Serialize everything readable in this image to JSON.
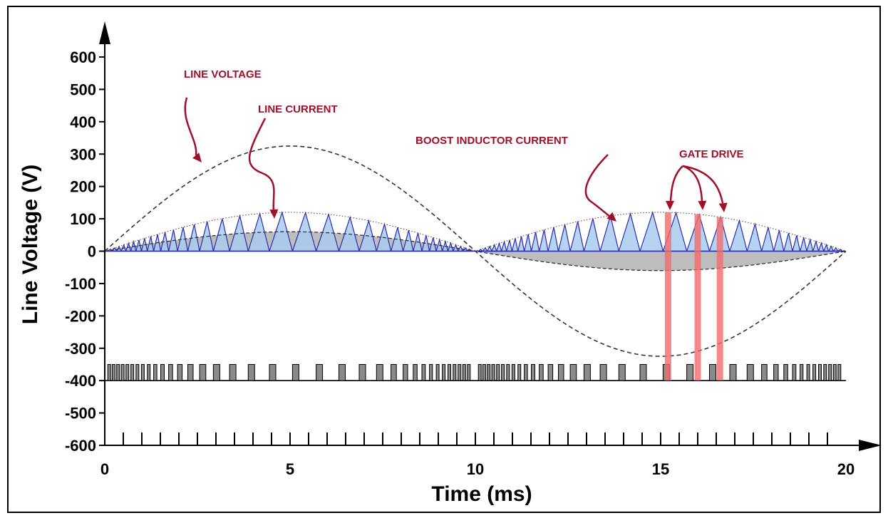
{
  "chart_data": {
    "type": "line",
    "xlabel": "Time (ms)",
    "ylabel": "Line Voltage (V)",
    "xlim": [
      0,
      20
    ],
    "ylim": [
      -600,
      600
    ],
    "x_ticks": [
      "0",
      "5",
      "10",
      "15",
      "20"
    ],
    "x_tick_values": [
      0,
      5,
      10,
      15,
      20
    ],
    "y_ticks": [
      "600",
      "500",
      "400",
      "300",
      "200",
      "100",
      "0",
      "-100",
      "-200",
      "-300",
      "-400",
      "-500",
      "-600"
    ],
    "y_tick_values": [
      600,
      500,
      400,
      300,
      200,
      100,
      0,
      -100,
      -200,
      -300,
      -400,
      -500,
      -600
    ],
    "minor_x_tick_step": 0.5,
    "grid": false,
    "series": [
      {
        "name": "LINE VOLTAGE",
        "style": "dashed",
        "color": "#333333",
        "x": [
          0,
          1,
          2,
          3,
          4,
          5,
          6,
          7,
          8,
          9,
          10,
          11,
          12,
          13,
          14,
          15,
          16,
          17,
          18,
          19,
          20
        ],
        "y": [
          0,
          100,
          190,
          262,
          308,
          325,
          308,
          262,
          190,
          100,
          0,
          -100,
          -190,
          -262,
          -308,
          -325,
          -308,
          -262,
          -190,
          -100,
          0
        ]
      },
      {
        "name": "LINE CURRENT",
        "style": "dashed-filled",
        "color": "#333333",
        "fill": "#bdbdbd",
        "x": [
          0,
          1,
          2,
          3,
          4,
          5,
          6,
          7,
          8,
          9,
          10,
          11,
          12,
          13,
          14,
          15,
          16,
          17,
          18,
          19,
          20
        ],
        "y": [
          0,
          18,
          35,
          48,
          57,
          60,
          57,
          48,
          35,
          18,
          0,
          -18,
          -35,
          -48,
          -57,
          -60,
          -57,
          -48,
          -35,
          -18,
          0
        ]
      },
      {
        "name": "BOOST INDUCTOR CURRENT",
        "style": "sawtooth",
        "color": "#2a2ab0",
        "fill": "#a9cdf0",
        "peak": 120,
        "note_envelope": "dotted"
      },
      {
        "name": "GATE DRIVE",
        "style": "pulses",
        "baseline": -400,
        "pulse_height": 50,
        "fill": "#8a8a8a"
      }
    ],
    "highlighted_pulses_ms": [
      15.2,
      16.0,
      16.6
    ],
    "highlight_color": "#f26b6b",
    "annotation_color": "#a0102a",
    "annotations": [
      {
        "text": "LINE VOLTAGE",
        "target": "LINE VOLTAGE"
      },
      {
        "text": "LINE CURRENT",
        "target": "LINE CURRENT"
      },
      {
        "text": "BOOST INDUCTOR CURRENT",
        "target": "BOOST INDUCTOR CURRENT"
      },
      {
        "text": "GATE DRIVE",
        "target": "GATE DRIVE"
      }
    ]
  }
}
